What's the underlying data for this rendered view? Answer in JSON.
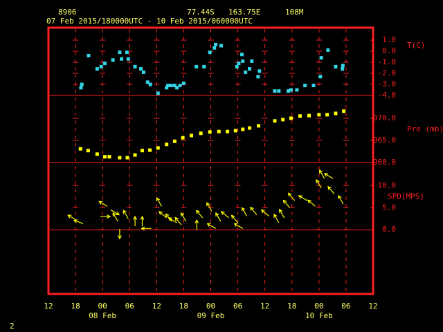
{
  "header": {
    "station": "8906",
    "latitude": "77.44S",
    "longitude": "163.75E",
    "elevation": "108M",
    "period": "07 Feb 2015/180000UTC - 10 Feb 2015/060000UTC",
    "page": "2"
  },
  "chart_data": [
    {
      "type": "scatter",
      "y_label": "T(C)",
      "color": "#33d6e6",
      "xlim": [
        0,
        72
      ],
      "ylim": [
        -4,
        2.125
      ],
      "yticks": [
        {
          "value": 1,
          "label": "1.0"
        },
        {
          "value": 0,
          "label": "0.0"
        },
        {
          "value": -1,
          "label": "-1.0"
        },
        {
          "value": -2,
          "label": "-2.0"
        },
        {
          "value": -3,
          "label": "-3.0"
        },
        {
          "value": -4,
          "label": "-4.0"
        }
      ],
      "x": [
        7.2,
        7.4,
        8.9,
        10.8,
        11.7,
        12.5,
        14.3,
        15.8,
        16.2,
        17.4,
        17.7,
        19.2,
        20.5,
        21.1,
        22.0,
        22.6,
        24.3,
        26.2,
        26.5,
        27.2,
        28.0,
        28.5,
        29.2,
        30.0,
        32.8,
        34.5,
        35.8,
        36.8,
        37.1,
        38.3,
        41.8,
        42.2,
        42.9,
        43.1,
        43.7,
        44.6,
        45.1,
        46.5,
        46.8,
        50.2,
        51.1,
        53.2,
        53.8,
        55.1,
        56.9,
        58.8,
        60.3,
        60.5,
        62.0,
        63.7,
        65.2,
        65.3
      ],
      "values": [
        -3.3,
        -3.0,
        -0.4,
        -1.6,
        -1.4,
        -1.1,
        -0.8,
        -0.1,
        -0.7,
        -0.1,
        -0.7,
        -1.4,
        -1.6,
        -1.9,
        -2.8,
        -3.0,
        -3.8,
        -3.3,
        -3.1,
        -3.1,
        -3.1,
        -3.3,
        -3.1,
        -2.9,
        -1.4,
        -1.4,
        -0.1,
        0.3,
        0.6,
        0.5,
        -1.4,
        -1.1,
        -0.3,
        -0.9,
        -1.9,
        -1.6,
        -0.9,
        -2.3,
        -1.8,
        -3.6,
        -3.6,
        -3.6,
        -3.5,
        -3.5,
        -3.1,
        -3.1,
        -2.3,
        -0.6,
        0.1,
        -1.4,
        -1.6,
        -1.3
      ]
    },
    {
      "type": "scatter",
      "y_label": "Pre (mb)",
      "color": "#ffff00",
      "xlim": [
        0,
        72
      ],
      "ylim": [
        960,
        975.15
      ],
      "yticks": [
        {
          "value": 970,
          "label": "970.0"
        },
        {
          "value": 965,
          "label": "965.0"
        },
        {
          "value": 960,
          "label": "960.0"
        }
      ],
      "x": [
        7.1,
        8.8,
        10.8,
        12.5,
        13.5,
        15.8,
        17.5,
        19.2,
        20.8,
        22.5,
        24.3,
        26.2,
        28.0,
        29.8,
        31.7,
        33.8,
        35.8,
        37.8,
        39.7,
        41.5,
        43.1,
        44.6,
        46.6,
        50.2,
        52.0,
        53.8,
        55.8,
        57.8,
        60.0,
        61.8,
        63.7,
        65.5
      ],
      "values": [
        963.1,
        962.7,
        961.9,
        961.3,
        961.3,
        961.1,
        961.1,
        961.7,
        962.7,
        962.8,
        963.3,
        964.1,
        964.8,
        965.6,
        966.1,
        966.6,
        966.9,
        967.0,
        967.0,
        967.2,
        967.5,
        967.8,
        968.3,
        969.4,
        969.7,
        970.0,
        970.5,
        970.6,
        970.8,
        970.8,
        971.1,
        971.6
      ]
    },
    {
      "type": "wind",
      "y_label": "SPD(MPS)",
      "color": "#ffff00",
      "xlim": [
        0,
        72
      ],
      "ylim": [
        -14.5,
        15.2
      ],
      "yticks": [
        {
          "value": 10,
          "label": "10.0"
        },
        {
          "value": 5,
          "label": "5.0"
        },
        {
          "value": 0,
          "label": "0.0"
        }
      ],
      "xticks": [
        {
          "value": 0,
          "label": "12"
        },
        {
          "value": 6,
          "label": "18"
        },
        {
          "value": 12,
          "label": "00"
        },
        {
          "value": 18,
          "label": "06"
        },
        {
          "value": 24,
          "label": "12"
        },
        {
          "value": 30,
          "label": "18"
        },
        {
          "value": 36,
          "label": "00"
        },
        {
          "value": 42,
          "label": "06"
        },
        {
          "value": 48,
          "label": "12"
        },
        {
          "value": 54,
          "label": "18"
        },
        {
          "value": 60,
          "label": "00"
        },
        {
          "value": 66,
          "label": "06"
        },
        {
          "value": 72,
          "label": "12"
        }
      ],
      "day_labels": [
        {
          "value": 12,
          "label": "08 Feb"
        },
        {
          "value": 36,
          "label": "09 Feb"
        },
        {
          "value": 60,
          "label": "10 Feb"
        }
      ],
      "x": [
        6.2,
        7.7,
        11.5,
        13.1,
        13.8,
        15.4,
        15.8,
        17.7,
        19.2,
        20.8,
        22.8,
        25.1,
        26.2,
        27.4,
        28.5,
        29.5,
        30.5,
        32.9,
        34.2,
        36.2,
        37.1,
        38.2,
        40.0,
        42.0,
        43.1,
        44.0,
        46.2,
        48.9,
        51.1,
        52.3,
        53.5,
        54.6,
        57.4,
        59.2,
        60.5,
        61.2,
        63.1,
        63.4,
        65.4
      ],
      "values": [
        2.2,
        1.4,
        3.0,
        5.3,
        4.5,
        1.9,
        0.2,
        2.5,
        0.8,
        0.8,
        0.3,
        5.3,
        2.7,
        1.9,
        1.6,
        1.1,
        1.9,
        0.0,
        2.7,
        4.2,
        0.3,
        1.9,
        2.7,
        1.6,
        0.3,
        3.1,
        3.4,
        3.1,
        1.6,
        2.7,
        5.0,
        6.6,
        6.6,
        5.3,
        9.4,
        11.6,
        11.6,
        8.1,
        5.8
      ],
      "directions": [
        300,
        290,
        90,
        300,
        120,
        330,
        180,
        330,
        0,
        0,
        270,
        330,
        310,
        320,
        300,
        320,
        330,
        0,
        320,
        330,
        300,
        330,
        310,
        320,
        300,
        330,
        320,
        310,
        330,
        330,
        320,
        320,
        300,
        310,
        330,
        330,
        300,
        320,
        330
      ]
    }
  ]
}
